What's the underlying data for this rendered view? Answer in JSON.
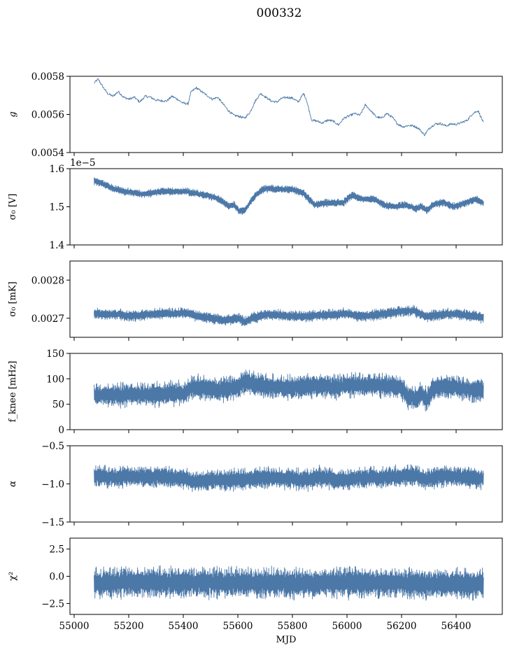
{
  "figure_title": "000332",
  "series_color": "#4c78a8",
  "chart_data": [
    {
      "type": "line",
      "id": "g",
      "ylabel": "g",
      "xlim": [
        54970,
        56580
      ],
      "ylim": [
        0.0054,
        0.0058
      ],
      "yticks": [
        0.0054,
        0.0056,
        0.0058
      ],
      "ytick_labels": [
        "0.0054",
        "0.0056",
        "0.0058"
      ],
      "x": [
        55060,
        55075,
        55090,
        55110,
        55130,
        55150,
        55170,
        55190,
        55210,
        55230,
        55250,
        55270,
        55290,
        55310,
        55330,
        55350,
        55370,
        55390,
        55410,
        55420,
        55440,
        55460,
        55480,
        55500,
        55520,
        55540,
        55560,
        55580,
        55600,
        55620,
        55640,
        55660,
        55680,
        55700,
        55720,
        55740,
        55760,
        55780,
        55800,
        55820,
        55840,
        55850,
        55870,
        55890,
        55910,
        55930,
        55950,
        55970,
        55990,
        56010,
        56030,
        56050,
        56070,
        56090,
        56110,
        56130,
        56150,
        56170,
        56190,
        56210,
        56230,
        56250,
        56270,
        56290,
        56310,
        56330,
        56350,
        56370,
        56390,
        56410,
        56430,
        56450,
        56470,
        56490,
        56510
      ],
      "y": [
        0.005765,
        0.005785,
        0.00575,
        0.00571,
        0.005695,
        0.00572,
        0.00569,
        0.00568,
        0.00569,
        0.005665,
        0.005695,
        0.00569,
        0.005675,
        0.005672,
        0.00567,
        0.005695,
        0.00568,
        0.00566,
        0.005655,
        0.005715,
        0.00574,
        0.00572,
        0.0057,
        0.00568,
        0.00569,
        0.005655,
        0.00562,
        0.005595,
        0.00559,
        0.00558,
        0.00561,
        0.00567,
        0.00571,
        0.00569,
        0.00567,
        0.005665,
        0.005685,
        0.00569,
        0.005685,
        0.005665,
        0.00571,
        0.00568,
        0.00557,
        0.005565,
        0.005555,
        0.00557,
        0.005565,
        0.005545,
        0.00558,
        0.005592,
        0.005605,
        0.005595,
        0.00565,
        0.00562,
        0.005588,
        0.00558,
        0.005605,
        0.005585,
        0.00555,
        0.005535,
        0.005542,
        0.00554,
        0.005525,
        0.005492,
        0.00553,
        0.00555,
        0.005552,
        0.00554,
        0.00555,
        0.005548,
        0.005558,
        0.00557,
        0.005605,
        0.00562,
        0.005555
      ],
      "noise": 6e-06
    },
    {
      "type": "line",
      "id": "sigma_v",
      "ylabel": "σ₀ [V]",
      "offset_text": "1e−5",
      "xlim": [
        54970,
        56580
      ],
      "ylim": [
        1.4,
        1.6
      ],
      "yticks": [
        1.4,
        1.5,
        1.6
      ],
      "ytick_labels": [
        "1.4",
        "1.5",
        "1.6"
      ],
      "x": [
        55060,
        55080,
        55100,
        55130,
        55160,
        55200,
        55240,
        55280,
        55320,
        55360,
        55400,
        55440,
        55480,
        55520,
        55560,
        55580,
        55600,
        55620,
        55640,
        55660,
        55680,
        55700,
        55720,
        55760,
        55800,
        55840,
        55860,
        55880,
        55920,
        55960,
        55990,
        56020,
        56060,
        56100,
        56140,
        56180,
        56220,
        56260,
        56280,
        56300,
        56320,
        56360,
        56400,
        56440,
        56480,
        56510
      ],
      "y": [
        1.567,
        1.565,
        1.558,
        1.548,
        1.542,
        1.538,
        1.533,
        1.537,
        1.541,
        1.54,
        1.54,
        1.535,
        1.53,
        1.522,
        1.502,
        1.505,
        1.49,
        1.49,
        1.51,
        1.53,
        1.542,
        1.548,
        1.547,
        1.546,
        1.545,
        1.535,
        1.52,
        1.505,
        1.51,
        1.51,
        1.512,
        1.53,
        1.52,
        1.52,
        1.505,
        1.5,
        1.505,
        1.495,
        1.5,
        1.49,
        1.505,
        1.512,
        1.5,
        1.51,
        1.52,
        1.51
      ],
      "band": 0.009
    },
    {
      "type": "line",
      "id": "sigma_mk",
      "ylabel": "σ₀ [mK]",
      "xlim": [
        54970,
        56580
      ],
      "ylim": [
        0.00265,
        0.00285
      ],
      "yticks": [
        0.0027,
        0.0028
      ],
      "ytick_labels": [
        "0.0027",
        "0.0028"
      ],
      "x": [
        55060,
        55100,
        55150,
        55200,
        55250,
        55300,
        55350,
        55400,
        55430,
        55450,
        55500,
        55550,
        55600,
        55620,
        55650,
        55700,
        55750,
        55800,
        55850,
        55900,
        55950,
        56000,
        56050,
        56100,
        56150,
        56200,
        56250,
        56280,
        56300,
        56350,
        56400,
        56450,
        56510
      ],
      "y": [
        0.002712,
        0.00271,
        0.00271,
        0.002705,
        0.00271,
        0.002712,
        0.002712,
        0.002715,
        0.002708,
        0.002705,
        0.0027,
        0.002695,
        0.0027,
        0.00269,
        0.0027,
        0.00271,
        0.002708,
        0.002705,
        0.002705,
        0.002708,
        0.00271,
        0.002712,
        0.002705,
        0.002708,
        0.002712,
        0.002718,
        0.00272,
        0.00271,
        0.002705,
        0.00271,
        0.002712,
        0.002708,
        0.002702
      ],
      "band": 1.3e-05
    },
    {
      "type": "line",
      "id": "fknee",
      "ylabel": "f_knee [mHz]",
      "xlim": [
        54970,
        56580
      ],
      "ylim": [
        0,
        150
      ],
      "yticks": [
        0,
        50,
        100,
        150
      ],
      "ytick_labels": [
        "0",
        "50",
        "100",
        "150"
      ],
      "x": [
        55060,
        55100,
        55150,
        55200,
        55250,
        55300,
        55350,
        55400,
        55420,
        55450,
        55500,
        55550,
        55600,
        55620,
        55650,
        55700,
        55750,
        55800,
        55850,
        55900,
        55950,
        56000,
        56050,
        56100,
        56150,
        56200,
        56230,
        56260,
        56280,
        56300,
        56320,
        56350,
        56400,
        56450,
        56510
      ],
      "y": [
        68,
        68,
        68,
        69,
        70,
        70,
        71,
        72,
        82,
        84,
        80,
        78,
        85,
        95,
        90,
        86,
        84,
        83,
        85,
        86,
        84,
        86,
        88,
        88,
        86,
        84,
        65,
        62,
        70,
        60,
        80,
        85,
        84,
        80,
        76
      ],
      "band": 22
    },
    {
      "type": "line",
      "id": "alpha",
      "ylabel": "α",
      "xlim": [
        54970,
        56580
      ],
      "ylim": [
        -1.5,
        -0.5
      ],
      "yticks": [
        -1.5,
        -1.0,
        -0.5
      ],
      "ytick_labels": [
        "−1.5",
        "−1.0",
        "−0.5"
      ],
      "x": [
        55060,
        55100,
        55150,
        55200,
        55250,
        55300,
        55350,
        55400,
        55420,
        55450,
        55500,
        55550,
        55600,
        55650,
        55700,
        55750,
        55800,
        55850,
        55900,
        55950,
        56000,
        56050,
        56100,
        56150,
        56200,
        56250,
        56280,
        56300,
        56350,
        56400,
        56450,
        56510
      ],
      "y": [
        -0.9,
        -0.9,
        -0.91,
        -0.9,
        -0.91,
        -0.9,
        -0.92,
        -0.93,
        -0.98,
        -0.96,
        -0.94,
        -0.95,
        -0.94,
        -0.93,
        -0.92,
        -0.92,
        -0.93,
        -0.95,
        -0.9,
        -0.94,
        -0.95,
        -0.92,
        -0.92,
        -0.91,
        -0.9,
        -0.88,
        -0.92,
        -0.93,
        -0.9,
        -0.9,
        -0.91,
        -0.93
      ],
      "band": 0.13
    },
    {
      "type": "line",
      "id": "chi2",
      "ylabel": "χ²",
      "xlabel": "MJD",
      "xlim": [
        54970,
        56580
      ],
      "ylim": [
        -3.5,
        3.5
      ],
      "yticks": [
        -2.5,
        0.0,
        2.5
      ],
      "ytick_labels": [
        "−2.5",
        "0.0",
        "2.5"
      ],
      "xticks": [
        55000,
        55200,
        55400,
        55600,
        55800,
        56000,
        56200,
        56400
      ],
      "xtick_labels": [
        "55000",
        "55200",
        "55400",
        "55600",
        "55800",
        "56000",
        "56200",
        "56400"
      ],
      "x": [
        55060,
        55200,
        55400,
        55600,
        55800,
        56000,
        56200,
        56300,
        56400,
        56510
      ],
      "y": [
        -0.6,
        -0.55,
        -0.55,
        -0.6,
        -0.65,
        -0.6,
        -0.6,
        -0.7,
        -0.65,
        -0.8
      ],
      "band": 1.3
    }
  ]
}
